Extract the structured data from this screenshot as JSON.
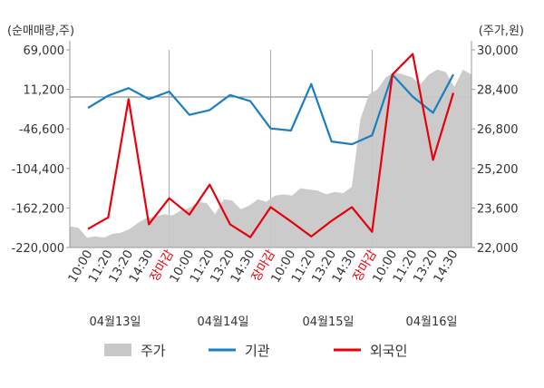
{
  "chart_data": {
    "type": "line",
    "left_axis_label": "(순매매량,주)",
    "right_axis_label": "(주가,원)",
    "left_ticks": [
      "69,000",
      "11,200",
      "-46,600",
      "-104,400",
      "-162,200",
      "-220,000"
    ],
    "right_ticks": [
      "30,000",
      "28,400",
      "26,800",
      "25,200",
      "23,600",
      "22,000"
    ],
    "ylim_left": [
      -220000,
      69000
    ],
    "ylim_right": [
      22000,
      30000
    ],
    "x_tick_labels": [
      "10:00",
      "11:20",
      "13:20",
      "14:30",
      "장마감",
      "10:00",
      "11:20",
      "13:20",
      "14:30",
      "장마감",
      "10:00",
      "11:20",
      "13:20",
      "14:30",
      "장마감",
      "10:00",
      "11:20",
      "13:20",
      "14:30"
    ],
    "close_label": "장마감",
    "days": [
      "04월13일",
      "04월14일",
      "04월15일",
      "04월16일"
    ],
    "series": [
      {
        "name": "기관",
        "color": "#1a7fc1",
        "axis": "left",
        "values": [
          -16000,
          2000,
          13000,
          -3000,
          8000,
          -26000,
          -19000,
          3000,
          -6000,
          -46000,
          -49000,
          19000,
          -65000,
          -69000,
          -56000,
          33000,
          600,
          -23000,
          33000
        ]
      },
      {
        "name": "외국인",
        "color": "#e8000b",
        "axis": "left",
        "values": [
          -193000,
          -176000,
          -3000,
          -186000,
          -148000,
          -172000,
          -128000,
          -186000,
          -205000,
          -161000,
          -182000,
          -204000,
          -181000,
          -161000,
          -197000,
          33000,
          63000,
          -92000,
          6000
        ]
      },
      {
        "name": "주가",
        "color": "#c8c8c8",
        "axis": "right",
        "type": "area",
        "values": [
          22850,
          22800,
          22400,
          22450,
          22400,
          22550,
          22600,
          22750,
          23000,
          23200,
          23250,
          23350,
          23300,
          23500,
          23600,
          23850,
          23800,
          23350,
          23950,
          23900,
          23550,
          23700,
          23950,
          23850,
          24100,
          24150,
          24100,
          24400,
          24350,
          24300,
          24150,
          24250,
          24200,
          24450,
          27200,
          28200,
          28400,
          28900,
          29100,
          29000,
          28900,
          28600,
          29000,
          29200,
          29100,
          28500,
          29200,
          29000
        ]
      }
    ]
  },
  "legend": [
    {
      "label": "주가",
      "color": "#c8c8c8"
    },
    {
      "label": "기관",
      "color": "#1a7fc1"
    },
    {
      "label": "외국인",
      "color": "#e8000b"
    }
  ]
}
